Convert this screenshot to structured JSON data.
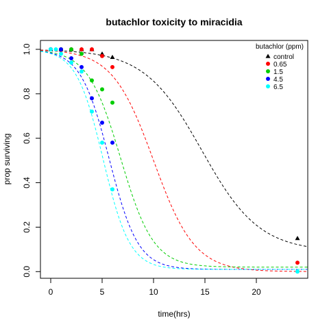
{
  "chart_data": {
    "type": "scatter",
    "title": "butachlor toxicity to miracidia",
    "xlabel": "time(hrs)",
    "ylabel": "prop surviving",
    "xlim": [
      -1,
      25
    ],
    "ylim": [
      -0.03,
      1.04
    ],
    "xticks": [
      0,
      5,
      10,
      15,
      20
    ],
    "yticks": [
      0.0,
      0.2,
      0.4,
      0.6,
      0.8,
      1.0
    ],
    "grid": false,
    "legend": {
      "title": "butachlor (ppm)",
      "placement": "top-right"
    },
    "series": [
      {
        "name": "control",
        "color": "#000000",
        "marker": "triangle",
        "points": [
          [
            0,
            1.0
          ],
          [
            1,
            1.0
          ],
          [
            2,
            1.0
          ],
          [
            3,
            1.0
          ],
          [
            4,
            1.0
          ],
          [
            5,
            0.98
          ],
          [
            6,
            0.965
          ],
          [
            24,
            0.15
          ]
        ],
        "fit": {
          "mid": 14.7,
          "scale": 2.8,
          "floor": 0.09
        }
      },
      {
        "name": "0.65",
        "color": "#ff0000",
        "marker": "circle",
        "points": [
          [
            0,
            1.0
          ],
          [
            1,
            1.0
          ],
          [
            2,
            1.0
          ],
          [
            3,
            1.0
          ],
          [
            4,
            1.0
          ],
          [
            5,
            0.97
          ],
          [
            6,
            0.92
          ],
          [
            24,
            0.04
          ]
        ],
        "fit": {
          "mid": 10.0,
          "scale": 2.0,
          "floor": 0.0
        }
      },
      {
        "name": "1.5",
        "color": "#00cd00",
        "marker": "circle",
        "points": [
          [
            0,
            1.0
          ],
          [
            1,
            1.0
          ],
          [
            2,
            1.0
          ],
          [
            3,
            0.98
          ],
          [
            4,
            0.86
          ],
          [
            5,
            0.82
          ],
          [
            6,
            0.76
          ]
        ],
        "fit": {
          "mid": 6.8,
          "scale": 1.6,
          "floor": 0.02
        }
      },
      {
        "name": "4.5",
        "color": "#0000ff",
        "marker": "circle",
        "points": [
          [
            0,
            1.0
          ],
          [
            1,
            1.0
          ],
          [
            2,
            0.96
          ],
          [
            3,
            0.92
          ],
          [
            4,
            0.78
          ],
          [
            5,
            0.67
          ],
          [
            6,
            0.58
          ]
        ],
        "fit": {
          "mid": 5.7,
          "scale": 1.4,
          "floor": 0.01
        }
      },
      {
        "name": "6.5",
        "color": "#00ffff",
        "marker": "circle",
        "points": [
          [
            0,
            1.0
          ],
          [
            0.5,
            1.0
          ],
          [
            1,
            0.98
          ],
          [
            2,
            0.94
          ],
          [
            3,
            0.9
          ],
          [
            4,
            0.72
          ],
          [
            5,
            0.58
          ],
          [
            6,
            0.37
          ],
          [
            24,
            0.0
          ]
        ],
        "fit": {
          "mid": 5.1,
          "scale": 1.3,
          "floor": 0.01
        }
      }
    ]
  }
}
